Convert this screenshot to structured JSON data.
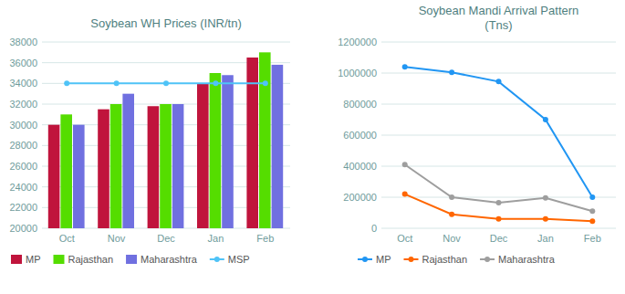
{
  "chart_data": [
    {
      "type": "bar",
      "title": "Soybean WH Prices (INR/tn)",
      "categories": [
        "Oct",
        "Nov",
        "Dec",
        "Jan",
        "Feb"
      ],
      "series": [
        {
          "name": "MP",
          "color": "#c0143c",
          "values": [
            30000,
            31500,
            31800,
            34000,
            36500
          ]
        },
        {
          "name": "Rajasthan",
          "color": "#55dd00",
          "values": [
            31000,
            32000,
            32000,
            35000,
            37000
          ]
        },
        {
          "name": "Maharashtra",
          "color": "#7070e0",
          "values": [
            30000,
            33000,
            32000,
            34800,
            35800
          ]
        },
        {
          "name": "MSP",
          "color": "#4fc3f7",
          "type": "line",
          "marker": "circle",
          "values": [
            34000,
            34000,
            34000,
            34000,
            34000
          ]
        }
      ],
      "ylim": [
        20000,
        38000
      ],
      "yticks": [
        20000,
        22000,
        24000,
        26000,
        28000,
        30000,
        32000,
        34000,
        36000,
        38000
      ],
      "grid": true,
      "legend": "bottom"
    },
    {
      "type": "line",
      "title": "Soybean Mandi Arrival Pattern\n(Tns)",
      "categories": [
        "Oct",
        "Nov",
        "Dec",
        "Jan",
        "Feb"
      ],
      "series": [
        {
          "name": "MP",
          "color": "#2196F3",
          "marker": "circle",
          "values": [
            1040000,
            1005000,
            945000,
            700000,
            200000
          ]
        },
        {
          "name": "Rajasthan",
          "color": "#FF6600",
          "marker": "circle",
          "values": [
            220000,
            90000,
            60000,
            60000,
            45000
          ]
        },
        {
          "name": "Maharashtra",
          "color": "#9E9E9E",
          "marker": "circle",
          "values": [
            410000,
            200000,
            165000,
            195000,
            110000
          ]
        }
      ],
      "ylim": [
        0,
        1200000
      ],
      "yticks": [
        0,
        200000,
        400000,
        600000,
        800000,
        1000000,
        1200000
      ],
      "grid": true,
      "legend": "bottom"
    }
  ]
}
